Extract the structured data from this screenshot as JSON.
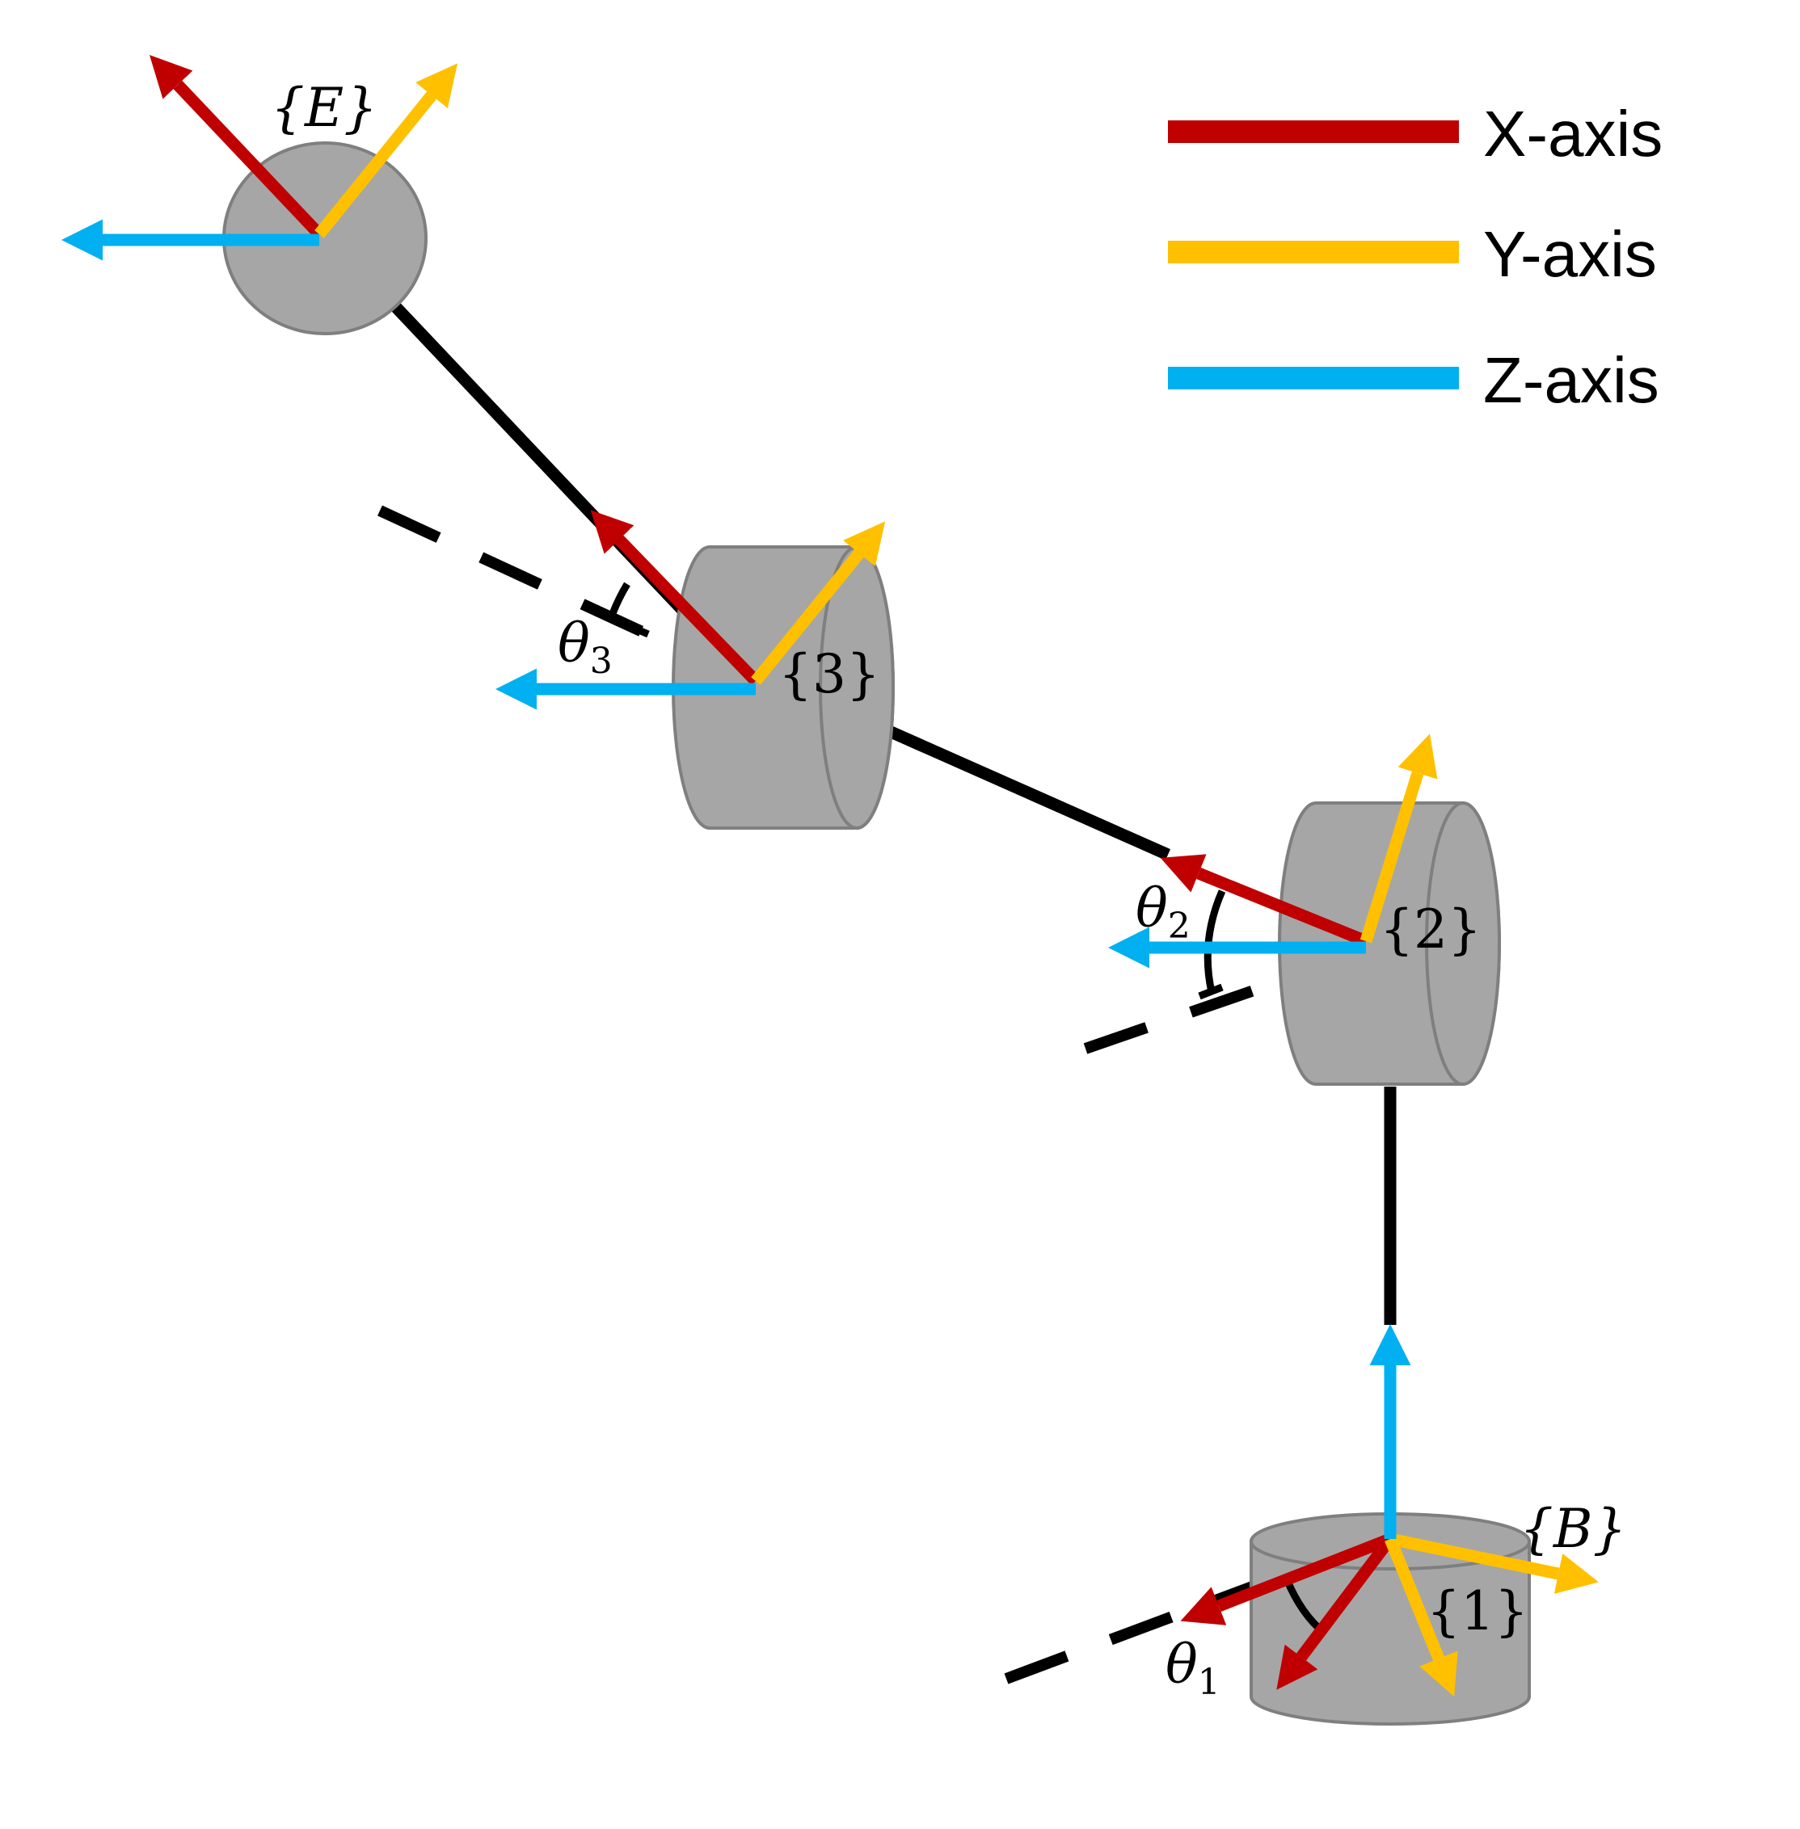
{
  "colors": {
    "x_axis": "#C00000",
    "y_axis": "#FFC000",
    "z_axis": "#00B0F0",
    "link": "#000000",
    "joint_fill": "#A6A6A6",
    "joint_stroke": "#7F7F7F"
  },
  "frames": {
    "end_effector": "{E}",
    "joint3": "{3}",
    "joint2": "{2}",
    "base": "{B}",
    "joint1": "{1}"
  },
  "angles": {
    "theta1": {
      "symbol": "θ",
      "subscript": "1"
    },
    "theta2": {
      "symbol": "θ",
      "subscript": "2"
    },
    "theta3": {
      "symbol": "θ",
      "subscript": "3"
    }
  },
  "legend": [
    {
      "label": "X-axis",
      "color": "#C00000"
    },
    {
      "label": "Y-axis",
      "color": "#FFC000"
    },
    {
      "label": "Z-axis",
      "color": "#00B0F0"
    }
  ]
}
